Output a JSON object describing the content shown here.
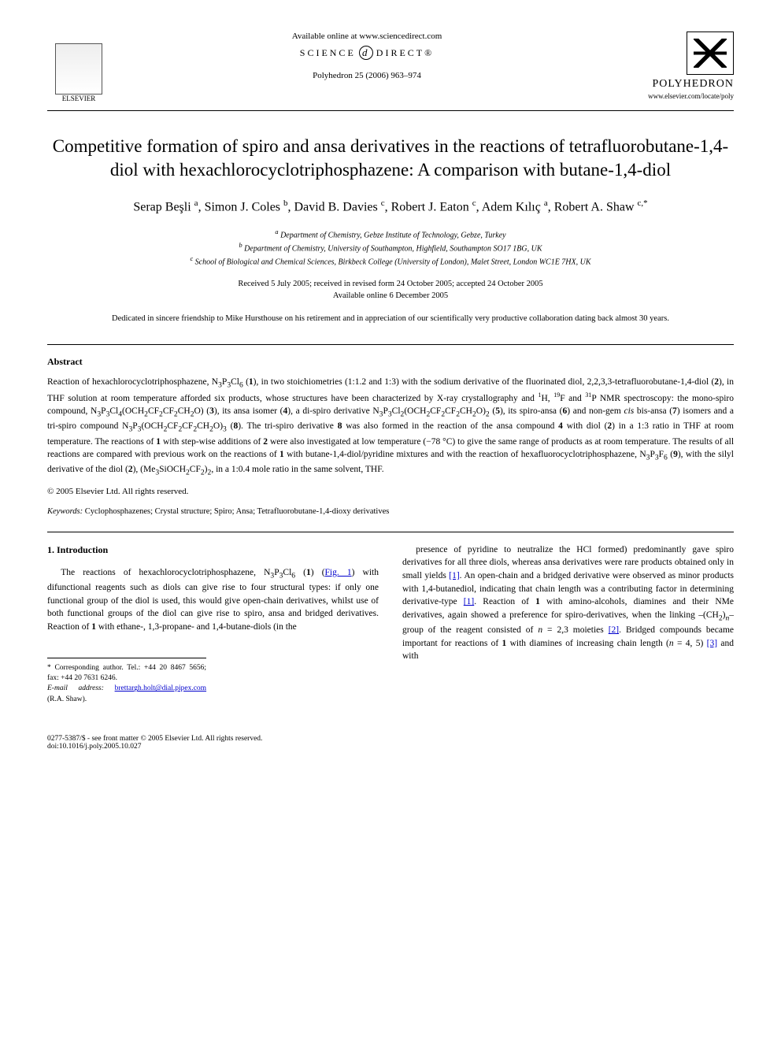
{
  "header": {
    "available_text": "Available online at www.sciencedirect.com",
    "science_direct_left": "SCIENCE",
    "science_direct_right": "DIRECT®",
    "journal_ref": "Polyhedron 25 (2006) 963–974",
    "elsevier_label": "ELSEVIER",
    "polyhedron_label": "POLYHEDRON",
    "journal_url": "www.elsevier.com/locate/poly"
  },
  "title": "Competitive formation of spiro and ansa derivatives in the reactions of tetrafluorobutane-1,4-diol with hexachlorocyclotriphosphazene: A comparison with butane-1,4-diol",
  "authors_html": "Serap Beşli <sup>a</sup>, Simon J. Coles <sup>b</sup>, David B. Davies <sup>c</sup>, Robert J. Eaton <sup>c</sup>, Adem Kılıç <sup>a</sup>, Robert A. Shaw <sup>c,*</sup>",
  "affiliations": {
    "a": "Department of Chemistry, Gebze Institute of Technology, Gebze, Turkey",
    "b": "Department of Chemistry, University of Southampton, Highfield, Southampton SO17 1BG, UK",
    "c": "School of Biological and Chemical Sciences, Birkbeck College (University of London), Malet Street, London WC1E 7HX, UK"
  },
  "dates": {
    "received": "Received 5 July 2005; received in revised form 24 October 2005; accepted 24 October 2005",
    "online": "Available online 6 December 2005"
  },
  "dedication": "Dedicated in sincere friendship to Mike Hursthouse on his retirement and in appreciation of our scientifically very productive collaboration dating back almost 30 years.",
  "abstract": {
    "heading": "Abstract",
    "body_html": "Reaction of hexachlorocyclotriphosphazene, N<sub>3</sub>P<sub>3</sub>Cl<sub>6</sub> (<b>1</b>), in two stoichiometries (1:1.2 and 1:3) with the sodium derivative of the fluorinated diol, 2,2,3,3-tetrafluorobutane-1,4-diol (<b>2</b>), in THF solution at room temperature afforded six products, whose structures have been characterized by X-ray crystallography and <sup>1</sup>H, <sup>19</sup>F and <sup>31</sup>P NMR spectroscopy: the mono-spiro compound, N<sub>3</sub>P<sub>3</sub>Cl<sub>4</sub>(OCH<sub>2</sub>CF<sub>2</sub>CF<sub>2</sub>CH<sub>2</sub>O) (<b>3</b>), its ansa isomer (<b>4</b>), a di-spiro derivative N<sub>3</sub>P<sub>3</sub>Cl<sub>2</sub>(OCH<sub>2</sub>CF<sub>2</sub>CF<sub>2</sub>CH<sub>2</sub>O)<sub>2</sub> (<b>5</b>), its spiro-ansa (<b>6</b>) and non-gem <i>cis</i> bis-ansa (<b>7</b>) isomers and a tri-spiro compound N<sub>3</sub>P<sub>3</sub>(OCH<sub>2</sub>CF<sub>2</sub>CF<sub>2</sub>CH<sub>2</sub>O)<sub>3</sub> (<b>8</b>). The tri-spiro derivative <b>8</b> was also formed in the reaction of the ansa compound <b>4</b> with diol (<b>2</b>) in a 1:3 ratio in THF at room temperature. The reactions of <b>1</b> with step-wise additions of <b>2</b> were also investigated at low temperature (−78 °C) to give the same range of products as at room temperature. The results of all reactions are compared with previous work on the reactions of <b>1</b> with butane-1,4-diol/pyridine mixtures and with the reaction of hexafluorocyclotriphosphazene, N<sub>3</sub>P<sub>3</sub>F<sub>6</sub> (<b>9</b>), with the silyl derivative of the diol (<b>2</b>), (Me<sub>3</sub>SiOCH<sub>2</sub>CF<sub>2</sub>)<sub>2</sub>, in a 1:0.4 mole ratio in the same solvent, THF.",
    "copyright": "© 2005 Elsevier Ltd. All rights reserved."
  },
  "keywords": {
    "label": "Keywords:",
    "text": "Cyclophosphazenes; Crystal structure; Spiro; Ansa; Tetrafluorobutane-1,4-dioxy derivatives"
  },
  "introduction": {
    "heading": "1. Introduction",
    "col1_html": "The reactions of hexachlorocyclotriphosphazene, N<sub>3</sub>P<sub>3</sub>Cl<sub>6</sub> (<b>1</b>) (<a class=\"ref-link\" href=\"#\">Fig. 1</a>) with difunctional reagents such as diols can give rise to four structural types: if only one functional group of the diol is used, this would give open-chain derivatives, whilst use of both functional groups of the diol can give rise to spiro, ansa and bridged derivatives. Reaction of <b>1</b> with ethane-, 1,3-propane- and 1,4-butane-diols (in the",
    "col2_html": "presence of pyridine to neutralize the HCl formed) predominantly gave spiro derivatives for all three diols, whereas ansa derivatives were rare products obtained only in small yields <a class=\"ref-link\" href=\"#\">[1]</a>. An open-chain and a bridged derivative were observed as minor products with 1,4-butanediol, indicating that chain length was a contributing factor in determining derivative-type <a class=\"ref-link\" href=\"#\">[1]</a>. Reaction of <b>1</b> with amino-alcohols, diamines and their NMe derivatives, again showed a preference for spiro-derivatives, when the linking –(CH<sub>2</sub>)<sub><i>n</i></sub>– group of the reagent consisted of <i>n</i> = 2,3 moieties <a class=\"ref-link\" href=\"#\">[2]</a>. Bridged compounds became important for reactions of <b>1</b> with diamines of increasing chain length (<i>n</i> = 4, 5) <a class=\"ref-link\" href=\"#\">[3]</a> and with"
  },
  "corresp": {
    "line1": "* Corresponding author. Tel.: +44 20 8467 5656; fax: +44 20 7631 6246.",
    "email_label": "E-mail address:",
    "email": "brettargh.holt@dial.pipex.com",
    "name": "(R.A. Shaw)."
  },
  "footer": {
    "left": "0277-5387/$ - see front matter © 2005 Elsevier Ltd. All rights reserved.",
    "doi": "doi:10.1016/j.poly.2005.10.027"
  },
  "colors": {
    "text": "#000000",
    "link": "#0000cc",
    "background": "#ffffff",
    "rule": "#000000"
  },
  "typography": {
    "body_pt": 11.5,
    "title_pt": 23,
    "authors_pt": 16,
    "affil_pt": 10,
    "footer_pt": 9.5,
    "font_family": "Georgia, Times New Roman, serif"
  }
}
